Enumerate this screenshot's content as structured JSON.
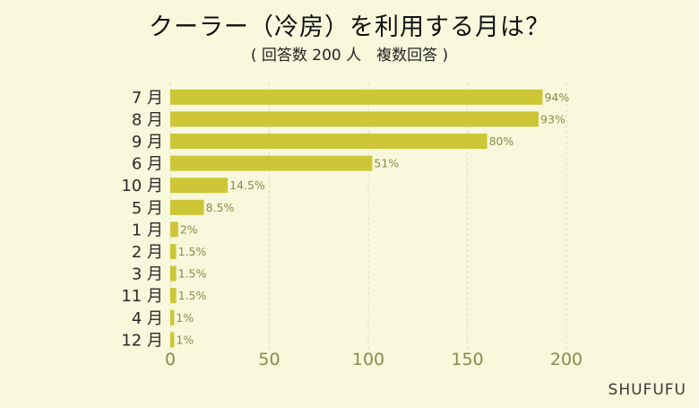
{
  "title": "クーラー（冷房）を利用する月は？",
  "subtitle": "( 回答数 200 人　複数回答 )",
  "brand": "SHUFUFU",
  "colors": {
    "bar": "#cdc637",
    "value_label": "#8a8a4a",
    "category_label": "#2a2a2a",
    "tick_label": "#8a8a4a",
    "grid": "#dcdcc4",
    "background": "#f8f8dc"
  },
  "chart_data": {
    "type": "bar",
    "orientation": "horizontal",
    "title": "クーラー（冷房）を利用する月は？",
    "subtitle": "( 回答数 200 人　複数回答 )",
    "categories": [
      "7 月",
      "8 月",
      "9 月",
      "6 月",
      "10 月",
      "5 月",
      "1 月",
      "2 月",
      "3 月",
      "11 月",
      "4 月",
      "12 月"
    ],
    "values": [
      188,
      186,
      160,
      102,
      29,
      17,
      4,
      3,
      3,
      3,
      2,
      2
    ],
    "value_labels": [
      "94%",
      "93%",
      "80%",
      "51%",
      "14.5%",
      "8.5%",
      "2%",
      "1.5%",
      "1.5%",
      "1.5%",
      "1%",
      "1%"
    ],
    "xlim": [
      0,
      200
    ],
    "x_ticks": [
      0,
      50,
      100,
      150,
      200
    ],
    "grid": "vertical dashed",
    "xlabel": "",
    "ylabel": ""
  }
}
